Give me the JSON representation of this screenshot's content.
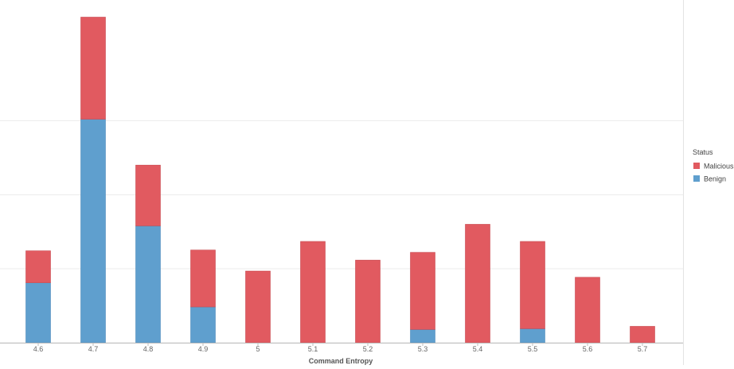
{
  "chart_data": {
    "type": "bar",
    "stacked": true,
    "title": "",
    "xlabel": "Command Entropy",
    "ylabel": "",
    "categories": [
      "4.6",
      "4.7",
      "4.8",
      "4.9",
      "5",
      "5.1",
      "5.2",
      "5.3",
      "5.4",
      "5.5",
      "5.6",
      "5.7"
    ],
    "ylim": [
      0,
      440
    ],
    "grid": true,
    "series": [
      {
        "name": "Benign",
        "color": "#5f9fce",
        "values": [
          77,
          287,
          150,
          46,
          0,
          0,
          0,
          17,
          0,
          18,
          0,
          0
        ]
      },
      {
        "name": "Malicious",
        "color": "#e15a60",
        "values": [
          41,
          131,
          78,
          73,
          92,
          130,
          106,
          99,
          152,
          112,
          84,
          21
        ]
      }
    ],
    "legend": {
      "title": "Status",
      "position": "right",
      "entries": [
        "Malicious",
        "Benign"
      ]
    }
  }
}
